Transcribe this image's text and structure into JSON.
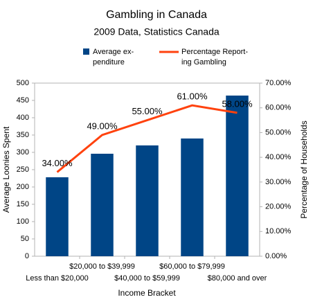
{
  "chart_data": {
    "type": "bar_line",
    "title": "Gambling in Canada",
    "subtitle": "2009 Data, Statistics Canada",
    "x_label": "Income Bracket",
    "y_label": "Average Loonies Spent",
    "y2_label": "Percentage of Households",
    "categories": [
      "Less than $20,000",
      "$20,000 to $39,999",
      "$40,000 to $59,999",
      "$60,000 to $79,999",
      "$80,000 and over"
    ],
    "series": [
      {
        "name": "Average ex-\npenditure",
        "type": "bar",
        "color": "#004586",
        "values": [
          228,
          296,
          320,
          340,
          464
        ]
      },
      {
        "name": "Percentage Report-\ning Gambling",
        "type": "line",
        "axis": "y2",
        "color": "#ff420e",
        "values": [
          34,
          49,
          55,
          61,
          58
        ],
        "value_labels": [
          "34.00%",
          "49.00%",
          "55.00%",
          "61.00%",
          "58.00%"
        ]
      }
    ],
    "ylim": [
      0,
      500
    ],
    "yticks": [
      0,
      50,
      100,
      150,
      200,
      250,
      300,
      350,
      400,
      450,
      500
    ],
    "y2lim": [
      0,
      70
    ],
    "y2ticks": [
      {
        "value": 0,
        "label": "0.00%"
      },
      {
        "value": 10,
        "label": "10.00%"
      },
      {
        "value": 20,
        "label": "20.00%"
      },
      {
        "value": 30,
        "label": "30.00%"
      },
      {
        "value": 40,
        "label": "40.00%"
      },
      {
        "value": 50,
        "label": "50.00%"
      },
      {
        "value": 60,
        "label": "60.00%"
      },
      {
        "value": 70,
        "label": "70.00%"
      }
    ],
    "grid": false
  }
}
